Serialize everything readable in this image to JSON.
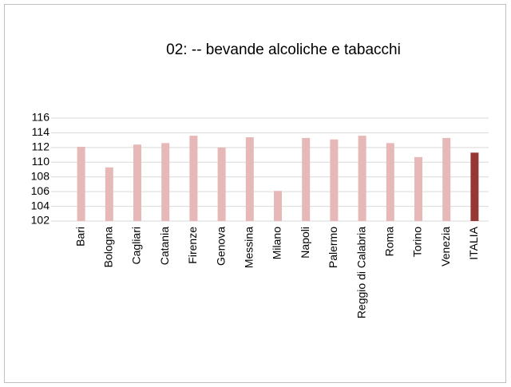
{
  "chart_data": {
    "type": "bar",
    "title": "02: -- bevande alcoliche e tabacchi",
    "categories": [
      "Bari",
      "Bologna",
      "Cagliari",
      "Catania",
      "Firenze",
      "Genova",
      "Messina",
      "Milano",
      "Napoli",
      "Palermo",
      "Reggio di Calabria",
      "Roma",
      "Torino",
      "Venezia",
      "ITALIA"
    ],
    "values": [
      112.1,
      109.3,
      112.4,
      112.6,
      113.6,
      112.0,
      113.4,
      106.1,
      113.3,
      113.1,
      113.6,
      112.6,
      110.7,
      113.3,
      111.3
    ],
    "colors": [
      "#e6b8b7",
      "#e6b8b7",
      "#e6b8b7",
      "#e6b8b7",
      "#e6b8b7",
      "#e6b8b7",
      "#e6b8b7",
      "#e6b8b7",
      "#e6b8b7",
      "#e6b8b7",
      "#e6b8b7",
      "#e6b8b7",
      "#e6b8b7",
      "#e6b8b7",
      "#953735"
    ],
    "ylim": [
      102,
      116
    ],
    "yticks": [
      102,
      104,
      106,
      108,
      110,
      112,
      114,
      116
    ],
    "grid": true
  }
}
